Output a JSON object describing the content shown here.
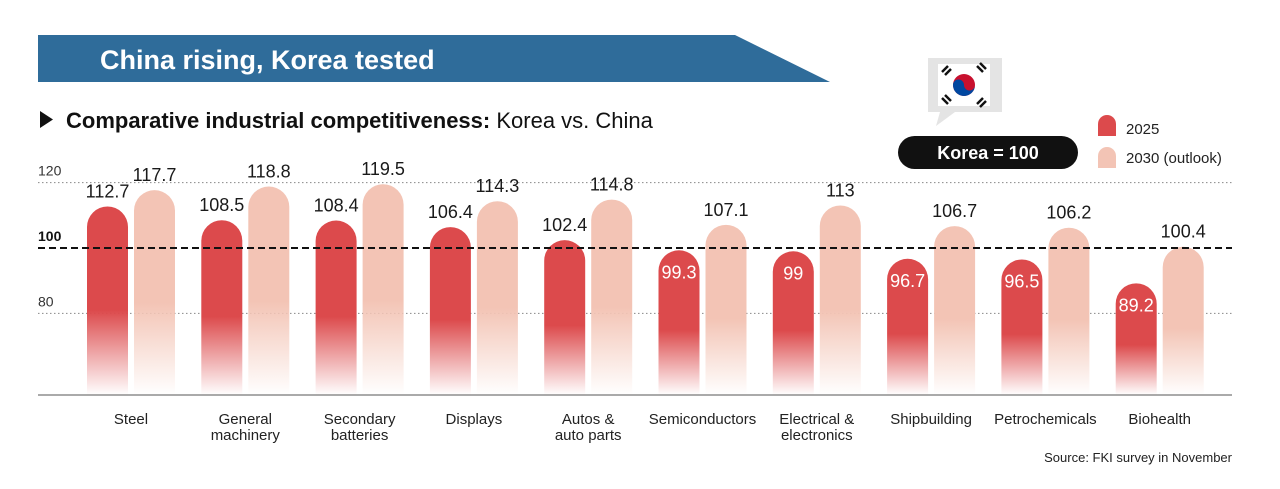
{
  "header": {
    "title": "China rising, Korea tested",
    "subtitle_bold": "Comparative industrial competitiveness:",
    "subtitle_rest": " Korea vs. China"
  },
  "badge": {
    "label": "Korea = 100",
    "icon": "korea-flag-icon"
  },
  "legend": {
    "position": "top-right",
    "items": [
      {
        "label": "2025",
        "color": "#dc4a4c"
      },
      {
        "label": "2030 (outlook)",
        "color": "#f3c4b5"
      }
    ]
  },
  "source": "Source: FKI survey in November",
  "chart_data": {
    "type": "bar",
    "categories": [
      [
        "Steel"
      ],
      [
        "General",
        "machinery"
      ],
      [
        "Secondary",
        "batteries"
      ],
      [
        "Displays"
      ],
      [
        "Autos &",
        "auto parts"
      ],
      [
        "Semiconductors"
      ],
      [
        "Electrical &",
        "electronics"
      ],
      [
        "Shipbuilding"
      ],
      [
        "Petrochemicals"
      ],
      [
        "Biohealth"
      ]
    ],
    "series": [
      {
        "name": "2025",
        "color": "#dc4a4c",
        "values": [
          112.7,
          108.5,
          108.4,
          106.4,
          102.4,
          99.3,
          99,
          96.7,
          96.5,
          89.2
        ],
        "labels": [
          "112.7",
          "108.5",
          "108.4",
          "106.4",
          "102.4",
          "99.3",
          "99",
          "96.7",
          "96.5",
          "89.2"
        ]
      },
      {
        "name": "2030 (outlook)",
        "color": "#f3c4b5",
        "values": [
          117.7,
          118.8,
          119.5,
          114.3,
          114.8,
          107.1,
          113,
          106.7,
          106.2,
          100.4
        ],
        "labels": [
          "117.7",
          "118.8",
          "119.5",
          "114.3",
          "114.8",
          "107.1",
          "113",
          "106.7",
          "106.2",
          "100.4"
        ]
      }
    ],
    "yticks": [
      "120",
      "100",
      "80"
    ],
    "ytick_values": [
      120,
      100,
      80
    ],
    "reference_line": 100,
    "grid": "dotted horizontal at 80 and 120, dashed at 100"
  }
}
